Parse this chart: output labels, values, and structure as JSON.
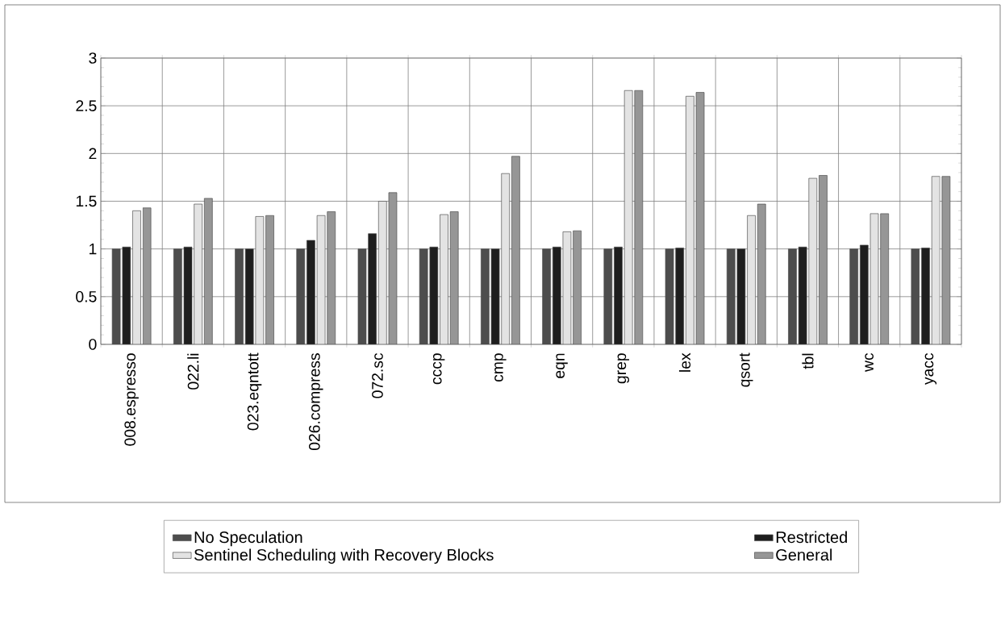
{
  "chart_data": {
    "type": "bar",
    "categories": [
      "008.espresso",
      "022.li",
      "023.eqntott",
      "026.compress",
      "072.sc",
      "cccp",
      "cmp",
      "eqn",
      "grep",
      "lex",
      "qsort",
      "tbl",
      "wc",
      "yacc"
    ],
    "series": [
      {
        "name": "No Speculation",
        "color": "#4d4d4d",
        "values": [
          1,
          1,
          1,
          1,
          1,
          1,
          1,
          1,
          1,
          1,
          1,
          1,
          1,
          1
        ]
      },
      {
        "name": "Restricted",
        "color": "#1e1e1e",
        "values": [
          1.02,
          1.02,
          1.0,
          1.09,
          1.16,
          1.02,
          1.0,
          1.02,
          1.02,
          1.01,
          1.0,
          1.02,
          1.04,
          1.01
        ]
      },
      {
        "name": "Sentinel Scheduling with Recovery Blocks",
        "color": "#e3e3e3",
        "values": [
          1.4,
          1.47,
          1.34,
          1.35,
          1.5,
          1.36,
          1.79,
          1.18,
          2.66,
          2.6,
          1.35,
          1.74,
          1.37,
          1.76
        ]
      },
      {
        "name": "General",
        "color": "#969696",
        "values": [
          1.43,
          1.53,
          1.35,
          1.39,
          1.59,
          1.39,
          1.97,
          1.19,
          2.66,
          2.64,
          1.47,
          1.77,
          1.37,
          1.76
        ]
      }
    ],
    "ylim": [
      0,
      3
    ],
    "yticks": [
      0,
      0.5,
      1,
      1.5,
      2,
      2.5,
      3
    ],
    "grid": true,
    "legend": "bottom"
  }
}
